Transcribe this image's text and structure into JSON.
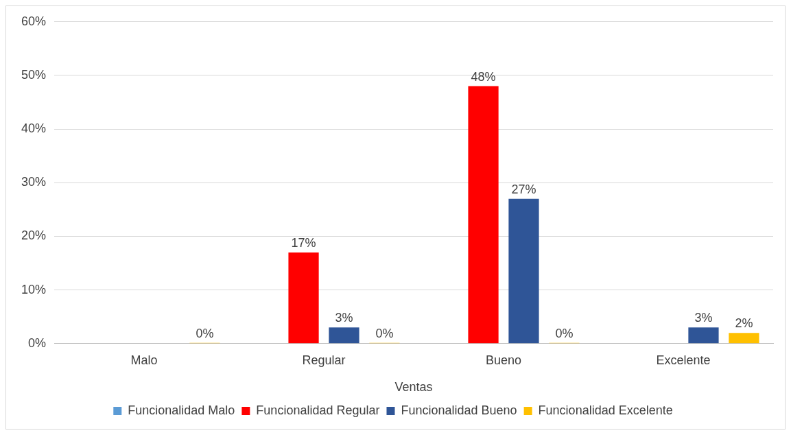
{
  "chart_data": {
    "type": "bar",
    "xlabel": "Ventas",
    "categories": [
      "Malo",
      "Regular",
      "Bueno",
      "Excelente"
    ],
    "series": [
      {
        "name": "Funcionalidad Malo",
        "color": "#5b9bd5",
        "values": [
          null,
          null,
          null,
          null
        ],
        "value_labels": [
          null,
          null,
          null,
          null
        ]
      },
      {
        "name": "Funcionalidad Regular",
        "color": "#ff0000",
        "values": [
          null,
          17,
          48,
          null
        ],
        "value_labels": [
          null,
          "17%",
          "48%",
          null
        ]
      },
      {
        "name": "Funcionalidad Bueno",
        "color": "#2f5597",
        "values": [
          null,
          3,
          27,
          3
        ],
        "value_labels": [
          null,
          "3%",
          "27%",
          "3%"
        ]
      },
      {
        "name": "Funcionalidad Excelente",
        "color": "#ffc000",
        "values": [
          0,
          0,
          0,
          2
        ],
        "value_labels": [
          "0%",
          "0%",
          "0%",
          "2%"
        ]
      }
    ],
    "ylim": [
      0,
      60
    ],
    "yticks": [
      {
        "value": 0,
        "label": "0%"
      },
      {
        "value": 10,
        "label": "10%"
      },
      {
        "value": 20,
        "label": "20%"
      },
      {
        "value": 30,
        "label": "30%"
      },
      {
        "value": 40,
        "label": "40%"
      },
      {
        "value": 50,
        "label": "50%"
      },
      {
        "value": 60,
        "label": "60%"
      }
    ],
    "grid": "y",
    "legend": "bottom"
  }
}
